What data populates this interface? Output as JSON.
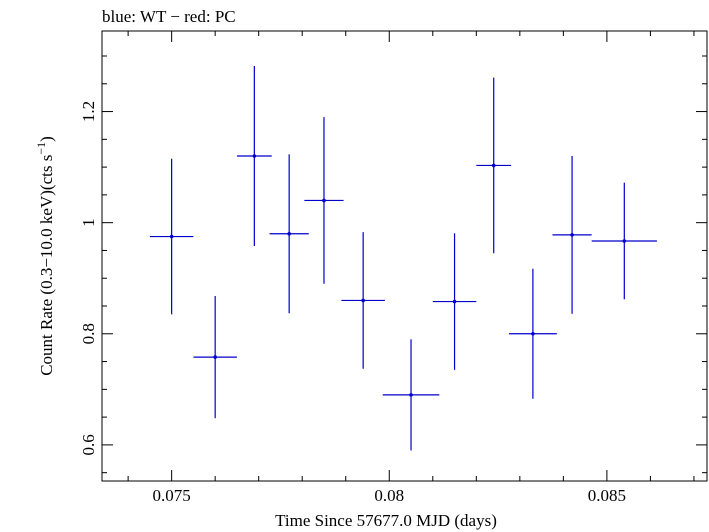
{
  "chart_data": {
    "type": "scatter",
    "title": "blue: WT − red: PC",
    "xlabel": "Time Since 57677.0 MJD (days)",
    "ylabel_prefix": "Count Rate (0.3−10.0 keV)(cts s",
    "ylabel_sup": "−1",
    "ylabel_suffix": ")",
    "xlim": [
      0.0734,
      0.0873
    ],
    "ylim": [
      0.535,
      1.345
    ],
    "x_ticks": [
      0.075,
      0.08,
      0.085
    ],
    "x_tick_labels": [
      "0.075",
      "0.08",
      "0.085"
    ],
    "y_ticks": [
      0.6,
      0.8,
      1.0,
      1.2
    ],
    "y_tick_labels": [
      "0.6",
      "0.8",
      "1",
      "1.2"
    ],
    "series": [
      {
        "color": "#0000cc",
        "points": [
          {
            "x": 0.075,
            "xerr": 0.0005,
            "y": 0.975,
            "yerr": 0.14
          },
          {
            "x": 0.076,
            "xerr": 0.0005,
            "y": 0.758,
            "yerr": 0.11
          },
          {
            "x": 0.0769,
            "xerr": 0.0004,
            "y": 1.12,
            "yerr": 0.162
          },
          {
            "x": 0.0777,
            "xerr": 0.00045,
            "y": 0.98,
            "yerr": 0.143
          },
          {
            "x": 0.0785,
            "xerr": 0.00045,
            "y": 1.04,
            "yerr": 0.15
          },
          {
            "x": 0.0794,
            "xerr": 0.0005,
            "y": 0.86,
            "yerr": 0.123
          },
          {
            "x": 0.0805,
            "xerr": 0.00065,
            "y": 0.69,
            "yerr": 0.1
          },
          {
            "x": 0.0815,
            "xerr": 0.0005,
            "y": 0.858,
            "yerr": 0.123
          },
          {
            "x": 0.0824,
            "xerr": 0.0004,
            "y": 1.103,
            "yerr": 0.158
          },
          {
            "x": 0.0833,
            "xerr": 0.00055,
            "y": 0.8,
            "yerr": 0.117
          },
          {
            "x": 0.0842,
            "xerr": 0.00045,
            "y": 0.978,
            "yerr": 0.142
          },
          {
            "x": 0.0854,
            "xerr": 0.00075,
            "y": 0.967,
            "yerr": 0.105
          }
        ]
      }
    ]
  }
}
